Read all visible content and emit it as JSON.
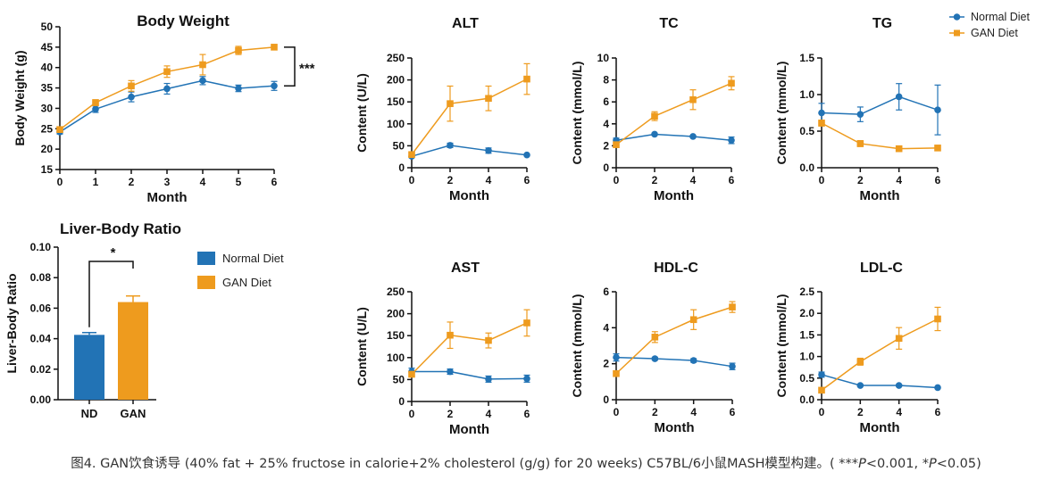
{
  "colors": {
    "normal": "#2273b5",
    "gan": "#ee9b1e",
    "axis": "#111111"
  },
  "legend": {
    "normal": "Normal Diet",
    "gan": "GAN Diet"
  },
  "caption": {
    "before": "图4. GAN饮食诱导 (40% fat + 25% fructose in calorie+2% cholesterol (g/g) for 20 weeks) C57BL/6小鼠MASH模型构建。( ***",
    "p1": "P",
    "mid": "<0.001, *",
    "p2": "P",
    "after": "<0.05)"
  },
  "chart_data": [
    {
      "id": "body-weight",
      "type": "line",
      "title": "Body Weight",
      "xlabel": "Month",
      "ylabel": "Body Weight (g)",
      "xlim": [
        0,
        6
      ],
      "xticks": [
        0,
        1,
        2,
        3,
        4,
        5,
        6
      ],
      "xticklabels": [
        "0",
        "1",
        "2",
        "3",
        "4",
        "5",
        "6"
      ],
      "ylim": [
        15,
        50
      ],
      "yticks": [
        15,
        20,
        25,
        30,
        35,
        40,
        45,
        50
      ],
      "yticklabels": [
        "15",
        "20",
        "25",
        "30",
        "35",
        "40",
        "45",
        "50"
      ],
      "significance": "***",
      "series": [
        {
          "name": "Normal Diet",
          "x": [
            0,
            1,
            2,
            3,
            4,
            5,
            6
          ],
          "y": [
            24.2,
            29.8,
            32.8,
            34.8,
            36.8,
            34.9,
            35.5
          ],
          "err": [
            0.5,
            0.8,
            1.2,
            1.3,
            1.0,
            0.8,
            1.1
          ]
        },
        {
          "name": "GAN Diet",
          "x": [
            0,
            1,
            2,
            3,
            4,
            5,
            6
          ],
          "y": [
            24.8,
            31.4,
            35.5,
            39.0,
            40.7,
            44.2,
            45.0
          ],
          "err": [
            0.5,
            0.7,
            1.3,
            1.4,
            2.5,
            1.0,
            0.6
          ]
        }
      ]
    },
    {
      "id": "alt",
      "type": "line",
      "title": "ALT",
      "xlabel": "Month",
      "ylabel": "Content (U/L)",
      "xlim": [
        0,
        6
      ],
      "xticks": [
        0,
        2,
        4,
        6
      ],
      "xticklabels": [
        "0",
        "2",
        "4",
        "6"
      ],
      "ylim": [
        0,
        250
      ],
      "yticks": [
        0,
        50,
        100,
        150,
        200,
        250
      ],
      "yticklabels": [
        "0",
        "50",
        "100",
        "150",
        "200",
        "250"
      ],
      "series": [
        {
          "name": "Normal Diet",
          "x": [
            0,
            2,
            4,
            6
          ],
          "y": [
            26,
            51,
            39,
            29
          ],
          "err": [
            3,
            5,
            6,
            2
          ]
        },
        {
          "name": "GAN Diet",
          "x": [
            0,
            2,
            4,
            6
          ],
          "y": [
            30,
            146,
            158,
            202
          ],
          "err": [
            3,
            40,
            28,
            35
          ]
        }
      ]
    },
    {
      "id": "tc",
      "type": "line",
      "title": "TC",
      "xlabel": "Month",
      "ylabel": "Content (mmol/L)",
      "xlim": [
        0,
        6
      ],
      "xticks": [
        0,
        2,
        4,
        6
      ],
      "xticklabels": [
        "0",
        "2",
        "4",
        "6"
      ],
      "ylim": [
        0,
        10
      ],
      "yticks": [
        0,
        2,
        4,
        6,
        8,
        10
      ],
      "yticklabels": [
        "0",
        "2",
        "4",
        "6",
        "8",
        "10"
      ],
      "series": [
        {
          "name": "Normal Diet",
          "x": [
            0,
            2,
            4,
            6
          ],
          "y": [
            2.5,
            3.05,
            2.85,
            2.5
          ],
          "err": [
            0.2,
            0.1,
            0.1,
            0.3
          ]
        },
        {
          "name": "GAN Diet",
          "x": [
            0,
            2,
            4,
            6
          ],
          "y": [
            2.1,
            4.7,
            6.2,
            7.7
          ],
          "err": [
            0.2,
            0.4,
            0.9,
            0.6
          ]
        }
      ]
    },
    {
      "id": "tg",
      "type": "line",
      "title": "TG",
      "xlabel": "Month",
      "ylabel": "Content (mmol/L)",
      "xlim": [
        0,
        6
      ],
      "xticks": [
        0,
        2,
        4,
        6
      ],
      "xticklabels": [
        "0",
        "2",
        "4",
        "6"
      ],
      "ylim": [
        0,
        1.5
      ],
      "yticks": [
        0,
        0.5,
        1.0,
        1.5
      ],
      "yticklabels": [
        "0.0",
        "0.5",
        "1.0",
        "1.5"
      ],
      "series": [
        {
          "name": "Normal Diet",
          "x": [
            0,
            2,
            4,
            6
          ],
          "y": [
            0.75,
            0.73,
            0.97,
            0.79
          ],
          "err": [
            0.13,
            0.1,
            0.18,
            0.34
          ]
        },
        {
          "name": "GAN Diet",
          "x": [
            0,
            2,
            4,
            6
          ],
          "y": [
            0.61,
            0.33,
            0.26,
            0.27
          ],
          "err": [
            0.04,
            0.04,
            0.02,
            0.02
          ]
        }
      ]
    },
    {
      "id": "liver-body-ratio",
      "type": "bar",
      "title": "Liver-Body Ratio",
      "xlabel": "",
      "ylabel": "Liver-Body Ratio",
      "categories": [
        "ND",
        "GAN"
      ],
      "values": [
        0.0425,
        0.064
      ],
      "err": [
        0.0015,
        0.004
      ],
      "ylim": [
        0,
        0.1
      ],
      "yticks": [
        0,
        0.02,
        0.04,
        0.06,
        0.08,
        0.1
      ],
      "yticklabels": [
        "0.00",
        "0.02",
        "0.04",
        "0.06",
        "0.08",
        "0.10"
      ],
      "significance": "*"
    },
    {
      "id": "ast",
      "type": "line",
      "title": "AST",
      "xlabel": "Month",
      "ylabel": "Content (U/L)",
      "xlim": [
        0,
        6
      ],
      "xticks": [
        0,
        2,
        4,
        6
      ],
      "xticklabels": [
        "0",
        "2",
        "4",
        "6"
      ],
      "ylim": [
        0,
        250
      ],
      "yticks": [
        0,
        50,
        100,
        150,
        200,
        250
      ],
      "yticklabels": [
        "0",
        "50",
        "100",
        "150",
        "200",
        "250"
      ],
      "series": [
        {
          "name": "Normal Diet",
          "x": [
            0,
            2,
            4,
            6
          ],
          "y": [
            68,
            68,
            51,
            52
          ],
          "err": [
            8,
            6,
            7,
            8
          ]
        },
        {
          "name": "GAN Diet",
          "x": [
            0,
            2,
            4,
            6
          ],
          "y": [
            62,
            151,
            139,
            179
          ],
          "err": [
            6,
            30,
            17,
            30
          ]
        }
      ]
    },
    {
      "id": "hdl-c",
      "type": "line",
      "title": "HDL-C",
      "xlabel": "Month",
      "ylabel": "Content (mmol/L)",
      "xlim": [
        0,
        6
      ],
      "xticks": [
        0,
        2,
        4,
        6
      ],
      "xticklabels": [
        "0",
        "2",
        "4",
        "6"
      ],
      "ylim": [
        0,
        6
      ],
      "yticks": [
        0,
        2,
        4,
        6
      ],
      "yticklabels": [
        "0",
        "2",
        "4",
        "6"
      ],
      "series": [
        {
          "name": "Normal Diet",
          "x": [
            0,
            2,
            4,
            6
          ],
          "y": [
            2.35,
            2.28,
            2.18,
            1.85
          ],
          "err": [
            0.2,
            0.08,
            0.1,
            0.18
          ]
        },
        {
          "name": "GAN Diet",
          "x": [
            0,
            2,
            4,
            6
          ],
          "y": [
            1.45,
            3.48,
            4.45,
            5.15
          ],
          "err": [
            0.15,
            0.3,
            0.55,
            0.3
          ]
        }
      ]
    },
    {
      "id": "ldl-c",
      "type": "line",
      "title": "LDL-C",
      "xlabel": "Month",
      "ylabel": "Content (mmol/L)",
      "xlim": [
        0,
        6
      ],
      "xticks": [
        0,
        2,
        4,
        6
      ],
      "xticklabels": [
        "0",
        "2",
        "4",
        "6"
      ],
      "ylim": [
        0,
        2.5
      ],
      "yticks": [
        0,
        0.5,
        1.0,
        1.5,
        2.0,
        2.5
      ],
      "yticklabels": [
        "0.0",
        "0.5",
        "1.0",
        "1.5",
        "2.0",
        "2.5"
      ],
      "series": [
        {
          "name": "Normal Diet",
          "x": [
            0,
            2,
            4,
            6
          ],
          "y": [
            0.58,
            0.33,
            0.33,
            0.28
          ],
          "err": [
            0.06,
            0.02,
            0.02,
            0.02
          ]
        },
        {
          "name": "GAN Diet",
          "x": [
            0,
            2,
            4,
            6
          ],
          "y": [
            0.22,
            0.88,
            1.42,
            1.87
          ],
          "err": [
            0.05,
            0.08,
            0.25,
            0.27
          ]
        }
      ]
    }
  ]
}
